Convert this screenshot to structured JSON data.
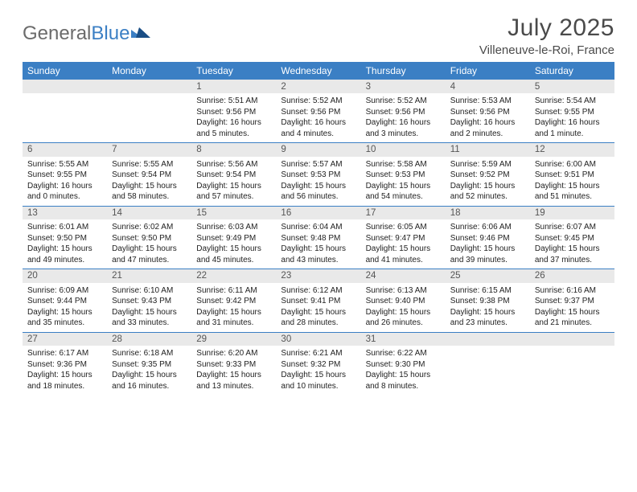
{
  "brand": {
    "part1": "General",
    "part2": "Blue"
  },
  "title": "July 2025",
  "location": "Villeneuve-le-Roi, France",
  "colors": {
    "header_bg": "#3b7fc4",
    "header_text": "#ffffff",
    "daynum_bg": "#e9e9e9",
    "rule": "#3b7fc4",
    "brand_gray": "#6b6b6b",
    "brand_blue": "#3b7fc4"
  },
  "dow": [
    "Sunday",
    "Monday",
    "Tuesday",
    "Wednesday",
    "Thursday",
    "Friday",
    "Saturday"
  ],
  "weeks": [
    [
      null,
      null,
      {
        "n": "1",
        "sr": "5:51 AM",
        "ss": "9:56 PM",
        "dl": "16 hours and 5 minutes."
      },
      {
        "n": "2",
        "sr": "5:52 AM",
        "ss": "9:56 PM",
        "dl": "16 hours and 4 minutes."
      },
      {
        "n": "3",
        "sr": "5:52 AM",
        "ss": "9:56 PM",
        "dl": "16 hours and 3 minutes."
      },
      {
        "n": "4",
        "sr": "5:53 AM",
        "ss": "9:56 PM",
        "dl": "16 hours and 2 minutes."
      },
      {
        "n": "5",
        "sr": "5:54 AM",
        "ss": "9:55 PM",
        "dl": "16 hours and 1 minute."
      }
    ],
    [
      {
        "n": "6",
        "sr": "5:55 AM",
        "ss": "9:55 PM",
        "dl": "16 hours and 0 minutes."
      },
      {
        "n": "7",
        "sr": "5:55 AM",
        "ss": "9:54 PM",
        "dl": "15 hours and 58 minutes."
      },
      {
        "n": "8",
        "sr": "5:56 AM",
        "ss": "9:54 PM",
        "dl": "15 hours and 57 minutes."
      },
      {
        "n": "9",
        "sr": "5:57 AM",
        "ss": "9:53 PM",
        "dl": "15 hours and 56 minutes."
      },
      {
        "n": "10",
        "sr": "5:58 AM",
        "ss": "9:53 PM",
        "dl": "15 hours and 54 minutes."
      },
      {
        "n": "11",
        "sr": "5:59 AM",
        "ss": "9:52 PM",
        "dl": "15 hours and 52 minutes."
      },
      {
        "n": "12",
        "sr": "6:00 AM",
        "ss": "9:51 PM",
        "dl": "15 hours and 51 minutes."
      }
    ],
    [
      {
        "n": "13",
        "sr": "6:01 AM",
        "ss": "9:50 PM",
        "dl": "15 hours and 49 minutes."
      },
      {
        "n": "14",
        "sr": "6:02 AM",
        "ss": "9:50 PM",
        "dl": "15 hours and 47 minutes."
      },
      {
        "n": "15",
        "sr": "6:03 AM",
        "ss": "9:49 PM",
        "dl": "15 hours and 45 minutes."
      },
      {
        "n": "16",
        "sr": "6:04 AM",
        "ss": "9:48 PM",
        "dl": "15 hours and 43 minutes."
      },
      {
        "n": "17",
        "sr": "6:05 AM",
        "ss": "9:47 PM",
        "dl": "15 hours and 41 minutes."
      },
      {
        "n": "18",
        "sr": "6:06 AM",
        "ss": "9:46 PM",
        "dl": "15 hours and 39 minutes."
      },
      {
        "n": "19",
        "sr": "6:07 AM",
        "ss": "9:45 PM",
        "dl": "15 hours and 37 minutes."
      }
    ],
    [
      {
        "n": "20",
        "sr": "6:09 AM",
        "ss": "9:44 PM",
        "dl": "15 hours and 35 minutes."
      },
      {
        "n": "21",
        "sr": "6:10 AM",
        "ss": "9:43 PM",
        "dl": "15 hours and 33 minutes."
      },
      {
        "n": "22",
        "sr": "6:11 AM",
        "ss": "9:42 PM",
        "dl": "15 hours and 31 minutes."
      },
      {
        "n": "23",
        "sr": "6:12 AM",
        "ss": "9:41 PM",
        "dl": "15 hours and 28 minutes."
      },
      {
        "n": "24",
        "sr": "6:13 AM",
        "ss": "9:40 PM",
        "dl": "15 hours and 26 minutes."
      },
      {
        "n": "25",
        "sr": "6:15 AM",
        "ss": "9:38 PM",
        "dl": "15 hours and 23 minutes."
      },
      {
        "n": "26",
        "sr": "6:16 AM",
        "ss": "9:37 PM",
        "dl": "15 hours and 21 minutes."
      }
    ],
    [
      {
        "n": "27",
        "sr": "6:17 AM",
        "ss": "9:36 PM",
        "dl": "15 hours and 18 minutes."
      },
      {
        "n": "28",
        "sr": "6:18 AM",
        "ss": "9:35 PM",
        "dl": "15 hours and 16 minutes."
      },
      {
        "n": "29",
        "sr": "6:20 AM",
        "ss": "9:33 PM",
        "dl": "15 hours and 13 minutes."
      },
      {
        "n": "30",
        "sr": "6:21 AM",
        "ss": "9:32 PM",
        "dl": "15 hours and 10 minutes."
      },
      {
        "n": "31",
        "sr": "6:22 AM",
        "ss": "9:30 PM",
        "dl": "15 hours and 8 minutes."
      },
      null,
      null
    ]
  ],
  "labels": {
    "sunrise": "Sunrise: ",
    "sunset": "Sunset: ",
    "daylight": "Daylight: "
  }
}
